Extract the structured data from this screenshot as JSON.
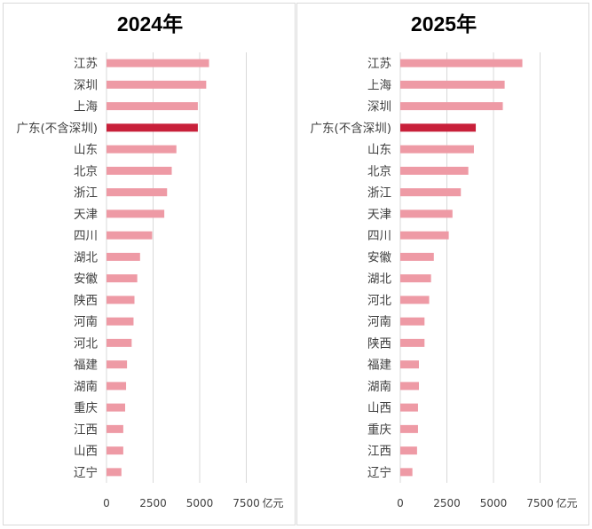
{
  "chart_data": [
    {
      "type": "bar",
      "orientation": "horizontal",
      "title": "2024年",
      "unit_label": "亿元",
      "xlim": [
        0,
        9000
      ],
      "xticks": [
        0,
        2500,
        5000,
        7500
      ],
      "highlight_category": "广东(不含深圳)",
      "colors": {
        "bar": "#ee9aa5",
        "highlight": "#c8203a",
        "grid": "#d9d9d9"
      },
      "categories": [
        "江苏",
        "深圳",
        "上海",
        "广东(不含深圳)",
        "山东",
        "北京",
        "浙江",
        "天津",
        "四川",
        "湖北",
        "安徽",
        "陕西",
        "河南",
        "河北",
        "福建",
        "湖南",
        "重庆",
        "江西",
        "山西",
        "辽宁"
      ],
      "values": [
        5500,
        5350,
        4900,
        4900,
        3750,
        3500,
        3250,
        3100,
        2450,
        1800,
        1650,
        1500,
        1450,
        1350,
        1100,
        1050,
        1000,
        900,
        900,
        800
      ]
    },
    {
      "type": "bar",
      "orientation": "horizontal",
      "title": "2025年",
      "unit_label": "亿元",
      "xlim": [
        0,
        9000
      ],
      "xticks": [
        0,
        2500,
        5000,
        7500
      ],
      "highlight_category": "广东(不含深圳)",
      "colors": {
        "bar": "#ee9aa5",
        "highlight": "#c8203a",
        "grid": "#d9d9d9"
      },
      "categories": [
        "江苏",
        "上海",
        "深圳",
        "广东(不含深圳)",
        "山东",
        "北京",
        "浙江",
        "天津",
        "四川",
        "安徽",
        "湖北",
        "河北",
        "河南",
        "陕西",
        "福建",
        "湖南",
        "山西",
        "重庆",
        "江西",
        "辽宁"
      ],
      "values": [
        6550,
        5600,
        5500,
        4050,
        3950,
        3650,
        3250,
        2800,
        2600,
        1800,
        1650,
        1550,
        1300,
        1300,
        1000,
        1000,
        950,
        950,
        900,
        650
      ]
    }
  ]
}
